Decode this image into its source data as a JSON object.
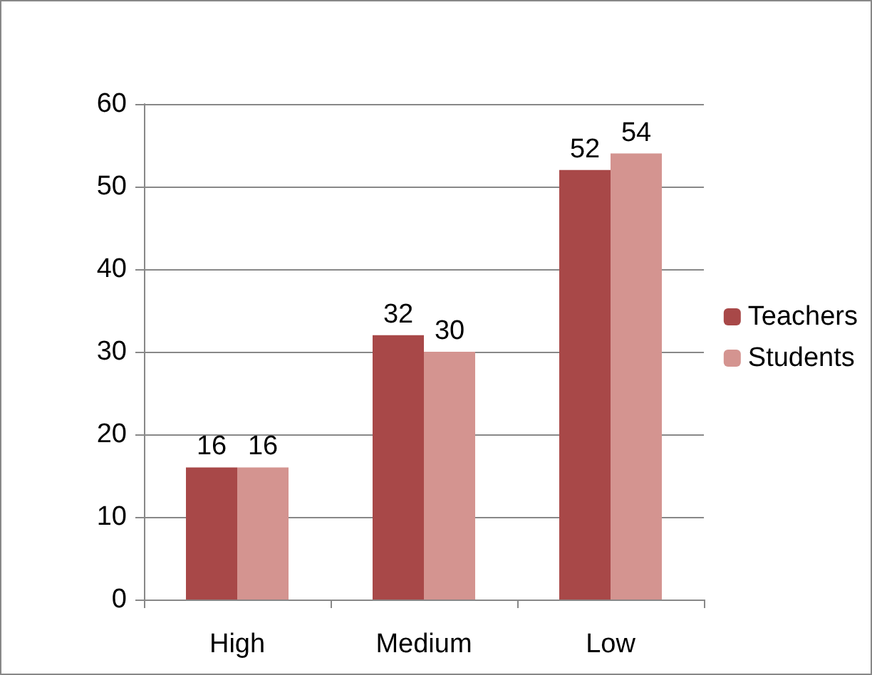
{
  "chart_data": {
    "type": "bar",
    "categories": [
      "High",
      "Medium",
      "Low"
    ],
    "series": [
      {
        "name": "Teachers",
        "color": "#a84848",
        "values": [
          16,
          32,
          52
        ]
      },
      {
        "name": "Students",
        "color": "#d49490",
        "values": [
          16,
          30,
          54
        ]
      }
    ],
    "ylim": [
      0,
      60
    ],
    "yticks": [
      0,
      10,
      20,
      30,
      40,
      50,
      60
    ],
    "grid": "y",
    "legend": "right",
    "data_labels": true
  }
}
